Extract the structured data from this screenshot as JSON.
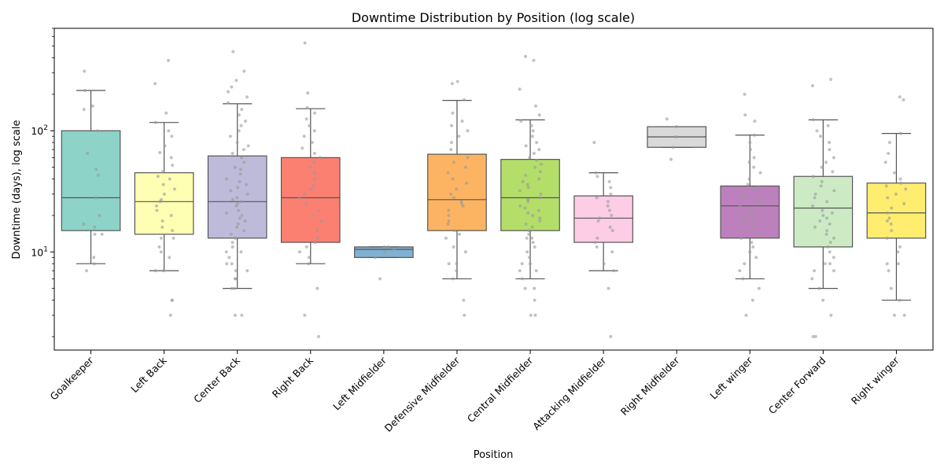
{
  "chart_data": {
    "type": "box",
    "title": "Downtime Distribution by Position (log scale)",
    "xlabel": "Position",
    "ylabel": "Downtime (days), log scale",
    "yscale": "log",
    "ylim": [
      1.55,
      700
    ],
    "y_ticks": [
      {
        "value": 10,
        "base": "10",
        "exp": "1"
      },
      {
        "value": 100,
        "base": "10",
        "exp": "2"
      }
    ],
    "grid": false,
    "point_color": "#999999",
    "box_edge_color": "#555555",
    "categories": [
      {
        "name": "Goalkeeper",
        "color": "#8DD3C7",
        "whisker_low": 8,
        "q1": 15,
        "median": 28,
        "q3": 100,
        "whisker_high": 215,
        "points": [
          8,
          7,
          9,
          14,
          14,
          16,
          17,
          20,
          28,
          43,
          48,
          65,
          100,
          150,
          160,
          215,
          310
        ]
      },
      {
        "name": "Left Back",
        "color": "#FFFFB3",
        "whisker_low": 7,
        "q1": 14,
        "median": 26,
        "q3": 45,
        "whisker_high": 117,
        "points": [
          3,
          4,
          4,
          7,
          7,
          9,
          10,
          11,
          13,
          13,
          15,
          16,
          18,
          20,
          22,
          24,
          26,
          27,
          30,
          33,
          36,
          40,
          42,
          46,
          52,
          60,
          66,
          75,
          90,
          100,
          117,
          140,
          245,
          380
        ]
      },
      {
        "name": "Center Back",
        "color": "#BEBADA",
        "whisker_low": 5,
        "q1": 13,
        "median": 26,
        "q3": 62,
        "whisker_high": 167,
        "points": [
          3,
          3,
          5,
          5,
          6,
          6,
          7,
          7,
          8,
          8,
          9,
          10,
          10,
          11,
          12,
          13,
          14,
          15,
          16,
          17,
          18,
          19,
          20,
          21,
          22,
          24,
          25,
          26,
          27,
          28,
          30,
          32,
          34,
          36,
          38,
          40,
          44,
          48,
          50,
          55,
          60,
          65,
          70,
          75,
          80,
          90,
          100,
          110,
          120,
          135,
          150,
          170,
          190,
          210,
          230,
          260,
          310,
          450
        ]
      },
      {
        "name": "Right Back",
        "color": "#FB8072",
        "whisker_low": 8,
        "q1": 12,
        "median": 28,
        "q3": 60,
        "whisker_high": 152,
        "points": [
          2,
          3,
          5,
          8,
          9,
          10,
          11,
          12,
          13,
          15,
          18,
          20,
          22,
          25,
          28,
          30,
          33,
          35,
          40,
          45,
          50,
          55,
          60,
          65,
          72,
          80,
          90,
          100,
          110,
          125,
          140,
          155,
          205,
          530
        ]
      },
      {
        "name": "Left Midfielder",
        "color": "#80B1D3",
        "whisker_low": 9,
        "q1": 9,
        "median": 10.5,
        "q3": 11,
        "whisker_high": 11,
        "points": [
          6,
          9,
          10,
          10.5,
          11,
          11
        ]
      },
      {
        "name": "Defensive Midfielder",
        "color": "#FDB462",
        "whisker_low": 6,
        "q1": 15,
        "median": 27,
        "q3": 64,
        "whisker_high": 178,
        "points": [
          3,
          4,
          6,
          7,
          8,
          8,
          10,
          11,
          13,
          14,
          15,
          17,
          18,
          20,
          22,
          24,
          25,
          26,
          28,
          30,
          33,
          37,
          40,
          45,
          50,
          55,
          60,
          70,
          80,
          90,
          100,
          110,
          120,
          140,
          180,
          245,
          255
        ]
      },
      {
        "name": "Central Midfielder",
        "color": "#B3DE69",
        "whisker_low": 6,
        "q1": 15,
        "median": 28,
        "q3": 58,
        "whisker_high": 123,
        "points": [
          3,
          3,
          4,
          5,
          5,
          6,
          7,
          7,
          8,
          8,
          9,
          10,
          11,
          12,
          13,
          13,
          14,
          15,
          16,
          17,
          18,
          19,
          20,
          21,
          22,
          23,
          24,
          26,
          27,
          28,
          30,
          32,
          34,
          36,
          38,
          40,
          43,
          46,
          50,
          53,
          57,
          60,
          65,
          70,
          75,
          80,
          90,
          100,
          110,
          120,
          135,
          160,
          220,
          380,
          410
        ]
      },
      {
        "name": "Attacking Midfielder",
        "color": "#FCCDE5",
        "whisker_low": 7,
        "q1": 12,
        "median": 19,
        "q3": 29,
        "whisker_high": 45,
        "points": [
          2,
          5,
          7,
          8,
          10,
          11,
          12,
          13,
          15,
          16,
          18,
          19,
          20,
          22,
          24,
          26,
          28,
          30,
          34,
          38,
          42,
          45,
          80
        ]
      },
      {
        "name": "Right Midfielder",
        "color": "#D9D9D9",
        "whisker_low": 73,
        "q1": 73,
        "median": 89,
        "q3": 108,
        "whisker_high": 108,
        "points": [
          58,
          73,
          89,
          108,
          125
        ]
      },
      {
        "name": "Left winger",
        "color": "#BC80BD",
        "whisker_low": 6,
        "q1": 13,
        "median": 24,
        "q3": 35,
        "whisker_high": 92,
        "points": [
          3,
          4,
          5,
          6,
          7,
          8,
          9,
          10,
          11,
          12,
          13,
          14,
          15,
          16,
          17,
          18,
          19,
          20,
          21,
          22,
          23,
          24,
          25,
          26,
          27,
          28,
          30,
          32,
          34,
          36,
          40,
          45,
          50,
          55,
          60,
          70,
          80,
          92,
          120,
          135,
          200
        ]
      },
      {
        "name": "Center Forward",
        "color": "#CCEBC5",
        "whisker_low": 5,
        "q1": 11,
        "median": 23,
        "q3": 42,
        "whisker_high": 123,
        "points": [
          2,
          2,
          3,
          4,
          5,
          6,
          7,
          7,
          8,
          8,
          9,
          10,
          11,
          12,
          13,
          14,
          15,
          16,
          17,
          18,
          19,
          20,
          21,
          22,
          24,
          26,
          28,
          30,
          32,
          35,
          38,
          42,
          46,
          50,
          55,
          60,
          70,
          80,
          90,
          100,
          110,
          123,
          235,
          265
        ]
      },
      {
        "name": "Right winger",
        "color": "#FFED6F",
        "whisker_low": 4,
        "q1": 13,
        "median": 21,
        "q3": 37,
        "whisker_high": 95,
        "points": [
          3,
          3,
          4,
          5,
          7,
          8,
          8,
          10,
          11,
          13,
          15,
          17,
          18,
          19,
          21,
          23,
          25,
          28,
          30,
          33,
          35,
          37,
          40,
          45,
          55,
          65,
          80,
          95,
          180,
          190
        ]
      }
    ]
  }
}
